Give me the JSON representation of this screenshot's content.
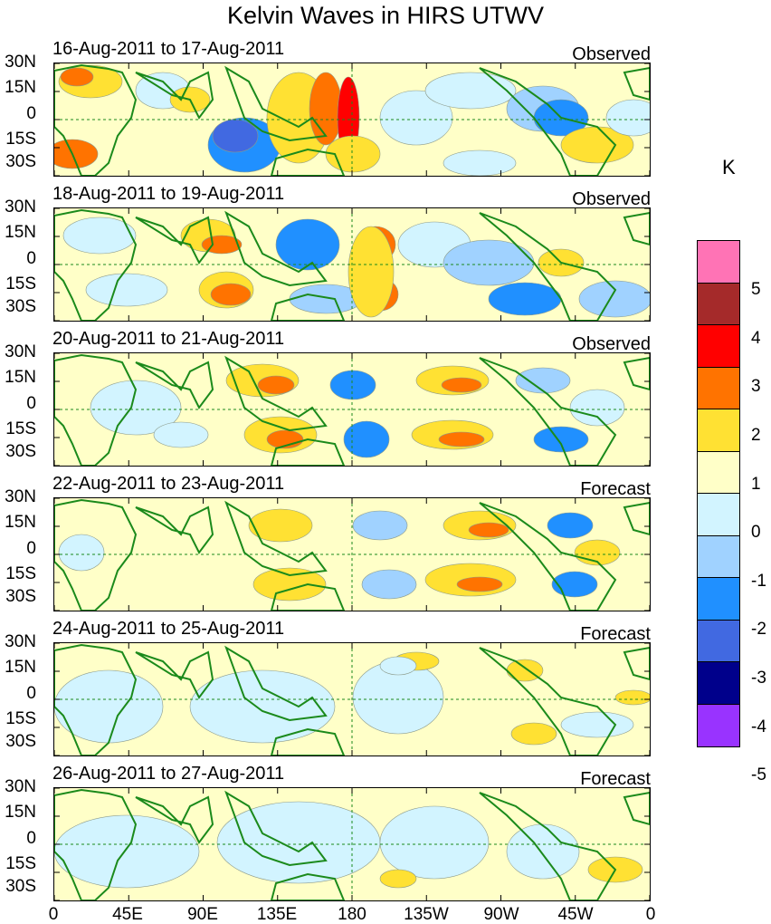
{
  "title": "Kelvin Waves in HIRS UTWV",
  "colorbar": {
    "unit": "K",
    "colors": [
      "#ff73b5",
      "#a52a2a",
      "#ff0000",
      "#ff7300",
      "#ffe133",
      "#ffffc8",
      "#d2f4ff",
      "#a0d2ff",
      "#2090ff",
      "#4169e1",
      "#00008b",
      "#9933ff"
    ],
    "labels": [
      "5",
      "4",
      "3",
      "2",
      "1",
      "0",
      "-1",
      "-2",
      "-3",
      "-4",
      "-5"
    ]
  },
  "lat_labels": [
    "30N",
    "15N",
    "0",
    "15S",
    "30S"
  ],
  "lon_labels": [
    "0",
    "45E",
    "90E",
    "135E",
    "180",
    "135W",
    "90W",
    "45W",
    "0"
  ],
  "panels": [
    {
      "date": "16-Aug-2011 to 17-Aug-2011",
      "status": "Observed"
    },
    {
      "date": "18-Aug-2011 to 19-Aug-2011",
      "status": "Observed"
    },
    {
      "date": "20-Aug-2011 to 21-Aug-2011",
      "status": "Observed"
    },
    {
      "date": "22-Aug-2011 to 23-Aug-2011",
      "status": "Forecast"
    },
    {
      "date": "24-Aug-2011 to 25-Aug-2011",
      "status": "Forecast"
    },
    {
      "date": "26-Aug-2011 to 27-Aug-2011",
      "status": "Forecast"
    }
  ]
}
